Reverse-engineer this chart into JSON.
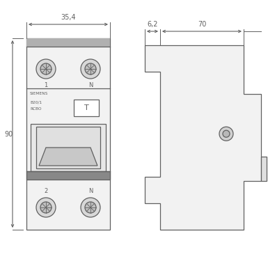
{
  "bg_color": "#ffffff",
  "line_color": "#606060",
  "dim_color": "#606060",
  "body_fill": "#f2f2f2",
  "gray_fill": "#909090",
  "front_view": {
    "dim_label": "35,4",
    "dim_90_label": "90"
  },
  "side_view": {
    "dim_62_label": "6,2",
    "dim_70_label": "70"
  },
  "label_lines": [
    "SIEMENS",
    "B20/1",
    "RCBO"
  ],
  "font_size_dim": 7.0,
  "font_size_label": 4.2,
  "font_size_12": 6.0
}
